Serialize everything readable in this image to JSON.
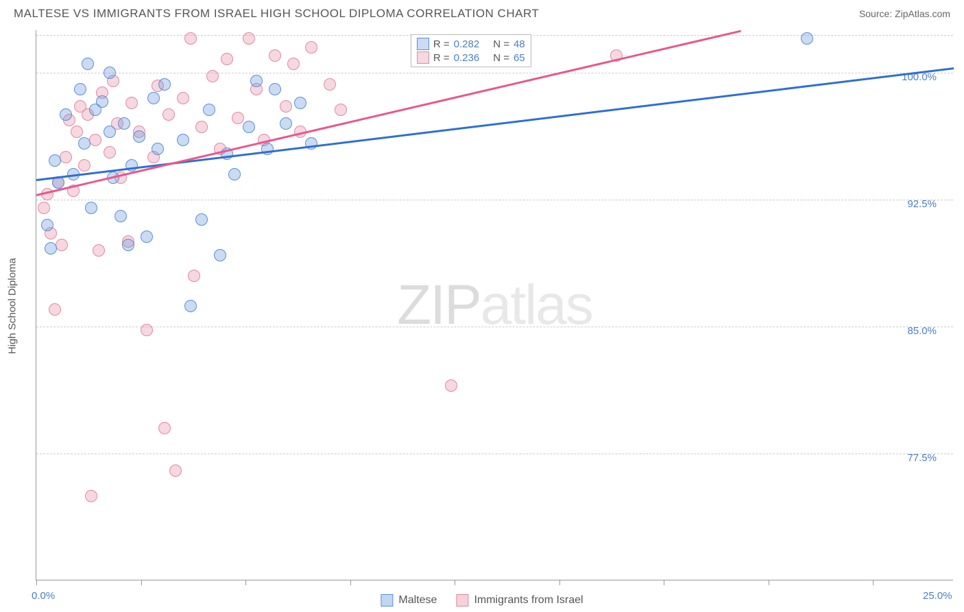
{
  "title": "MALTESE VS IMMIGRANTS FROM ISRAEL HIGH SCHOOL DIPLOMA CORRELATION CHART",
  "source": "Source: ZipAtlas.com",
  "watermark": {
    "bold": "ZIP",
    "light": "atlas"
  },
  "y_axis_label": "High School Diploma",
  "chart": {
    "type": "scatter",
    "background_color": "#ffffff",
    "grid_color": "#cccccc",
    "axis_color": "#999999",
    "xlim": [
      0,
      25
    ],
    "ylim": [
      70,
      102.5
    ],
    "x_ticks": [
      0,
      2.85,
      5.7,
      8.55,
      11.4,
      14.25,
      17.1,
      19.95,
      22.8
    ],
    "x_tick_labels": [
      {
        "value": 0,
        "label": "0.0%"
      },
      {
        "value": 25,
        "label": "25.0%"
      }
    ],
    "y_gridlines": [
      77.5,
      85.0,
      92.5,
      100.0,
      102.2
    ],
    "y_tick_labels": [
      {
        "value": 77.5,
        "label": "77.5%"
      },
      {
        "value": 85.0,
        "label": "85.0%"
      },
      {
        "value": 92.5,
        "label": "92.5%"
      },
      {
        "value": 100.0,
        "label": "100.0%"
      }
    ],
    "series": [
      {
        "name": "Maltese",
        "fill_color": "rgba(102,153,221,0.35)",
        "stroke_color": "#5a8fd4",
        "line_color": "#2f6fd0",
        "r_value": "0.282",
        "n_value": "48",
        "trend": {
          "x1": 0,
          "y1": 93.7,
          "x2": 25,
          "y2": 100.3
        },
        "points": [
          [
            0.3,
            91.0
          ],
          [
            0.4,
            89.6
          ],
          [
            0.5,
            94.8
          ],
          [
            0.6,
            93.5
          ],
          [
            0.8,
            97.5
          ],
          [
            1.0,
            94.0
          ],
          [
            1.2,
            99.0
          ],
          [
            1.3,
            95.8
          ],
          [
            1.4,
            100.5
          ],
          [
            1.5,
            92.0
          ],
          [
            1.6,
            97.8
          ],
          [
            1.8,
            98.3
          ],
          [
            2.0,
            96.5
          ],
          [
            2.0,
            100.0
          ],
          [
            2.1,
            93.8
          ],
          [
            2.3,
            91.5
          ],
          [
            2.4,
            97.0
          ],
          [
            2.5,
            89.8
          ],
          [
            2.6,
            94.5
          ],
          [
            2.8,
            96.2
          ],
          [
            3.0,
            90.3
          ],
          [
            3.2,
            98.5
          ],
          [
            3.3,
            95.5
          ],
          [
            3.5,
            99.3
          ],
          [
            4.0,
            96.0
          ],
          [
            4.2,
            86.2
          ],
          [
            4.5,
            91.3
          ],
          [
            4.7,
            97.8
          ],
          [
            5.0,
            89.2
          ],
          [
            5.2,
            95.2
          ],
          [
            5.4,
            94.0
          ],
          [
            5.8,
            96.8
          ],
          [
            6.0,
            99.5
          ],
          [
            6.3,
            95.5
          ],
          [
            6.5,
            99.0
          ],
          [
            6.8,
            97.0
          ],
          [
            7.2,
            98.2
          ],
          [
            7.5,
            95.8
          ],
          [
            21.0,
            102.0
          ]
        ]
      },
      {
        "name": "Immigrants from Israel",
        "fill_color": "rgba(232,140,165,0.35)",
        "stroke_color": "#e08aa0",
        "line_color": "#e8588a",
        "r_value": "0.236",
        "n_value": "65",
        "trend": {
          "x1": 0,
          "y1": 92.8,
          "x2": 19.2,
          "y2": 102.5
        },
        "points": [
          [
            0.2,
            92.0
          ],
          [
            0.3,
            92.8
          ],
          [
            0.4,
            90.5
          ],
          [
            0.5,
            86.0
          ],
          [
            0.6,
            93.5
          ],
          [
            0.7,
            89.8
          ],
          [
            0.8,
            95.0
          ],
          [
            0.9,
            97.2
          ],
          [
            1.0,
            93.0
          ],
          [
            1.1,
            96.5
          ],
          [
            1.2,
            98.0
          ],
          [
            1.3,
            94.5
          ],
          [
            1.4,
            97.5
          ],
          [
            1.5,
            75.0
          ],
          [
            1.6,
            96.0
          ],
          [
            1.7,
            89.5
          ],
          [
            1.8,
            98.8
          ],
          [
            2.0,
            95.3
          ],
          [
            2.1,
            99.5
          ],
          [
            2.2,
            97.0
          ],
          [
            2.3,
            93.8
          ],
          [
            2.5,
            90.0
          ],
          [
            2.6,
            98.2
          ],
          [
            2.8,
            96.5
          ],
          [
            3.0,
            84.8
          ],
          [
            3.2,
            95.0
          ],
          [
            3.3,
            99.2
          ],
          [
            3.5,
            79.0
          ],
          [
            3.6,
            97.5
          ],
          [
            3.8,
            76.5
          ],
          [
            4.0,
            98.5
          ],
          [
            4.2,
            102.0
          ],
          [
            4.3,
            88.0
          ],
          [
            4.5,
            96.8
          ],
          [
            4.8,
            99.8
          ],
          [
            5.0,
            95.5
          ],
          [
            5.2,
            100.8
          ],
          [
            5.5,
            97.3
          ],
          [
            5.8,
            102.0
          ],
          [
            6.0,
            99.0
          ],
          [
            6.2,
            96.0
          ],
          [
            6.5,
            101.0
          ],
          [
            6.8,
            98.0
          ],
          [
            7.0,
            100.5
          ],
          [
            7.2,
            96.5
          ],
          [
            7.5,
            101.5
          ],
          [
            8.0,
            99.3
          ],
          [
            8.3,
            97.8
          ],
          [
            11.3,
            81.5
          ],
          [
            15.8,
            101.0
          ]
        ]
      }
    ]
  },
  "legend_bottom": [
    {
      "label": "Maltese",
      "fill": "rgba(102,153,221,0.4)",
      "stroke": "#5a8fd4"
    },
    {
      "label": "Immigrants from Israel",
      "fill": "rgba(232,140,165,0.4)",
      "stroke": "#e08aa0"
    }
  ]
}
